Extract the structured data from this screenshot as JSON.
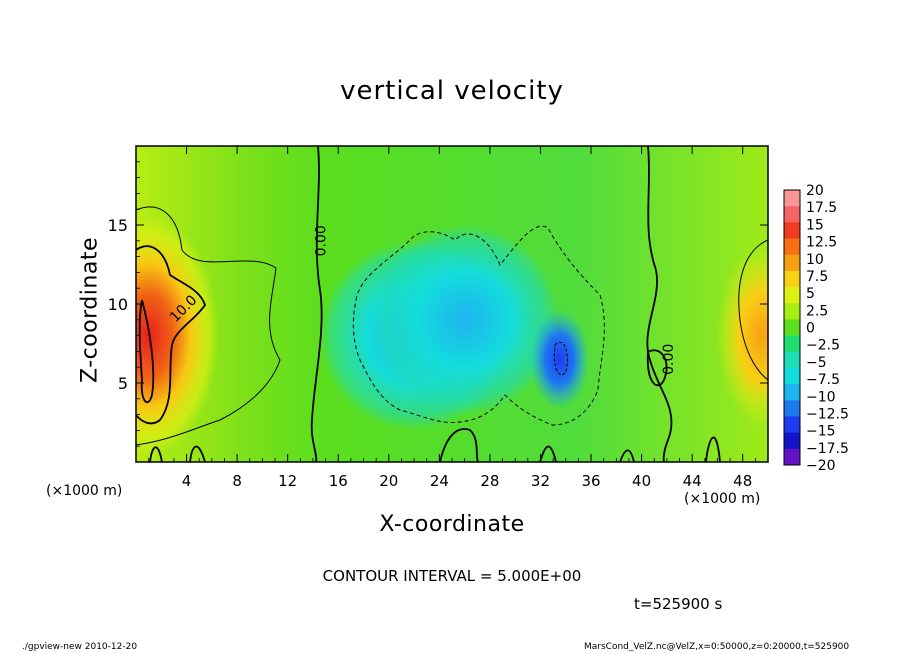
{
  "chart_data": {
    "type": "heatmap",
    "title": "vertical velocity",
    "xlabel": "X-coordinate",
    "ylabel": "Z-coordinate",
    "x_unit_label": "(×1000 m)",
    "x_ticks": [
      4,
      8,
      12,
      16,
      20,
      24,
      28,
      32,
      36,
      40,
      44,
      48
    ],
    "y_ticks": [
      5,
      10,
      15
    ],
    "xlim": [
      0,
      50
    ],
    "ylim": [
      0,
      20
    ],
    "contour_interval_text": "CONTOUR INTERVAL = 5.000E+00",
    "contour_labels": [
      {
        "text": "0.00",
        "x": 15.0,
        "y": 14.0
      },
      {
        "text": "10.0",
        "x": 4.0,
        "y": 9.5
      },
      {
        "text": "0.00",
        "x": 42.5,
        "y": 6.5
      }
    ],
    "colorbar": {
      "labels": [
        "20",
        "17.5",
        "15",
        "12.5",
        "10",
        "7.5",
        "5",
        "2.5",
        "0",
        "−2.5",
        "−5",
        "−7.5",
        "−10",
        "−12.5",
        "−15",
        "−17.5",
        "−20"
      ],
      "values": [
        20,
        17.5,
        15,
        12.5,
        10,
        7.5,
        5,
        2.5,
        0,
        -2.5,
        -5,
        -7.5,
        -10,
        -12.5,
        -15,
        -17.5,
        -20
      ],
      "colors": [
        "#f89696",
        "#f46464",
        "#f03c1e",
        "#f86e14",
        "#f8a014",
        "#f8d014",
        "#dcf014",
        "#a8ec14",
        "#5ade1e",
        "#1edc6e",
        "#1edcb4",
        "#14dcdc",
        "#1eb4f0",
        "#1e78f0",
        "#1e3cf0",
        "#1414c8",
        "#6414c8"
      ]
    },
    "regions": [
      {
        "kind": "positive",
        "cx": 1.0,
        "cy": 8.0,
        "value": 17.0
      },
      {
        "kind": "positive",
        "cx": 49.5,
        "cy": 8.0,
        "value": 11.0
      },
      {
        "kind": "negative",
        "cx": 22.0,
        "cy": 8.0,
        "value": -7.0
      },
      {
        "kind": "negative",
        "cx": 26.0,
        "cy": 9.0,
        "value": -9.0
      },
      {
        "kind": "negative",
        "cx": 33.5,
        "cy": 6.5,
        "value": -12.0
      }
    ]
  },
  "annotations": {
    "time": "t=525900 s",
    "footer_left": "./gpview-new   2010-12-20",
    "footer_right": "MarsCond_VelZ.nc@VelZ,x=0:50000,z=0:20000,t=525900"
  }
}
